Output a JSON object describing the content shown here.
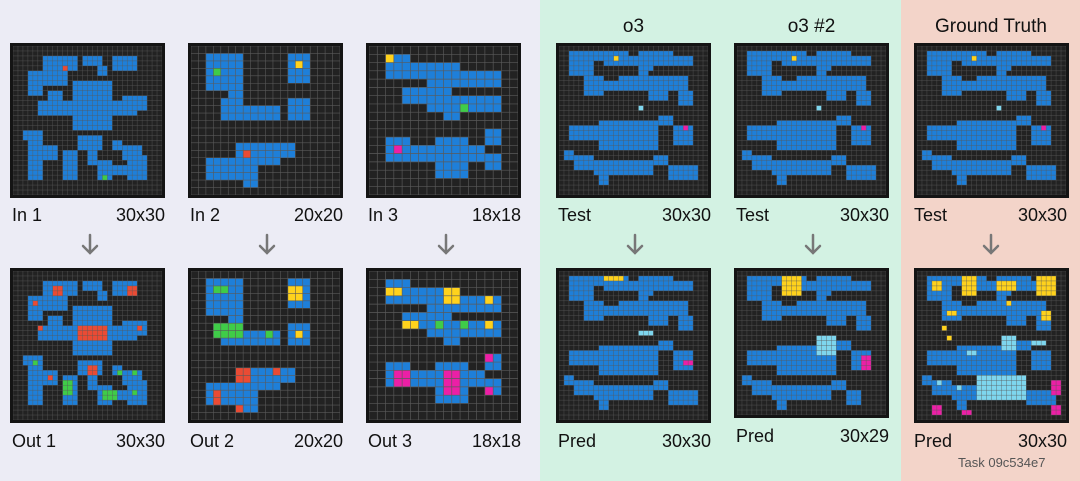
{
  "colors": {
    "background": "#222222",
    "grid_line": "#5a5a5a",
    "blue": "#1e7fd9",
    "red": "#ea4b34",
    "green": "#3fcc48",
    "yellow": "#ffd21c",
    "magenta": "#ec1fa6",
    "cyan": "#7ed6ee"
  },
  "headers": {
    "o3": "o3",
    "o3_2": "o3 #2",
    "ground_truth": "Ground Truth"
  },
  "pairs": [
    {
      "in_label": "In 1",
      "in_size": "30x30",
      "out_label": "Out 1",
      "out_size": "30x30"
    },
    {
      "in_label": "In 2",
      "in_size": "20x20",
      "out_label": "Out 2",
      "out_size": "20x20"
    },
    {
      "in_label": "In 3",
      "in_size": "18x18",
      "out_label": "Out 3",
      "out_size": "18x18"
    }
  ],
  "tests": [
    {
      "in_label": "Test",
      "in_size": "30x30",
      "out_label": "Pred",
      "out_size": "30x30"
    },
    {
      "in_label": "Test",
      "in_size": "30x30",
      "out_label": "Pred",
      "out_size": "30x29"
    },
    {
      "in_label": "Test",
      "in_size": "30x30",
      "out_label": "Pred",
      "out_size": "30x30"
    }
  ],
  "task_id": "Task 09c534e7"
}
